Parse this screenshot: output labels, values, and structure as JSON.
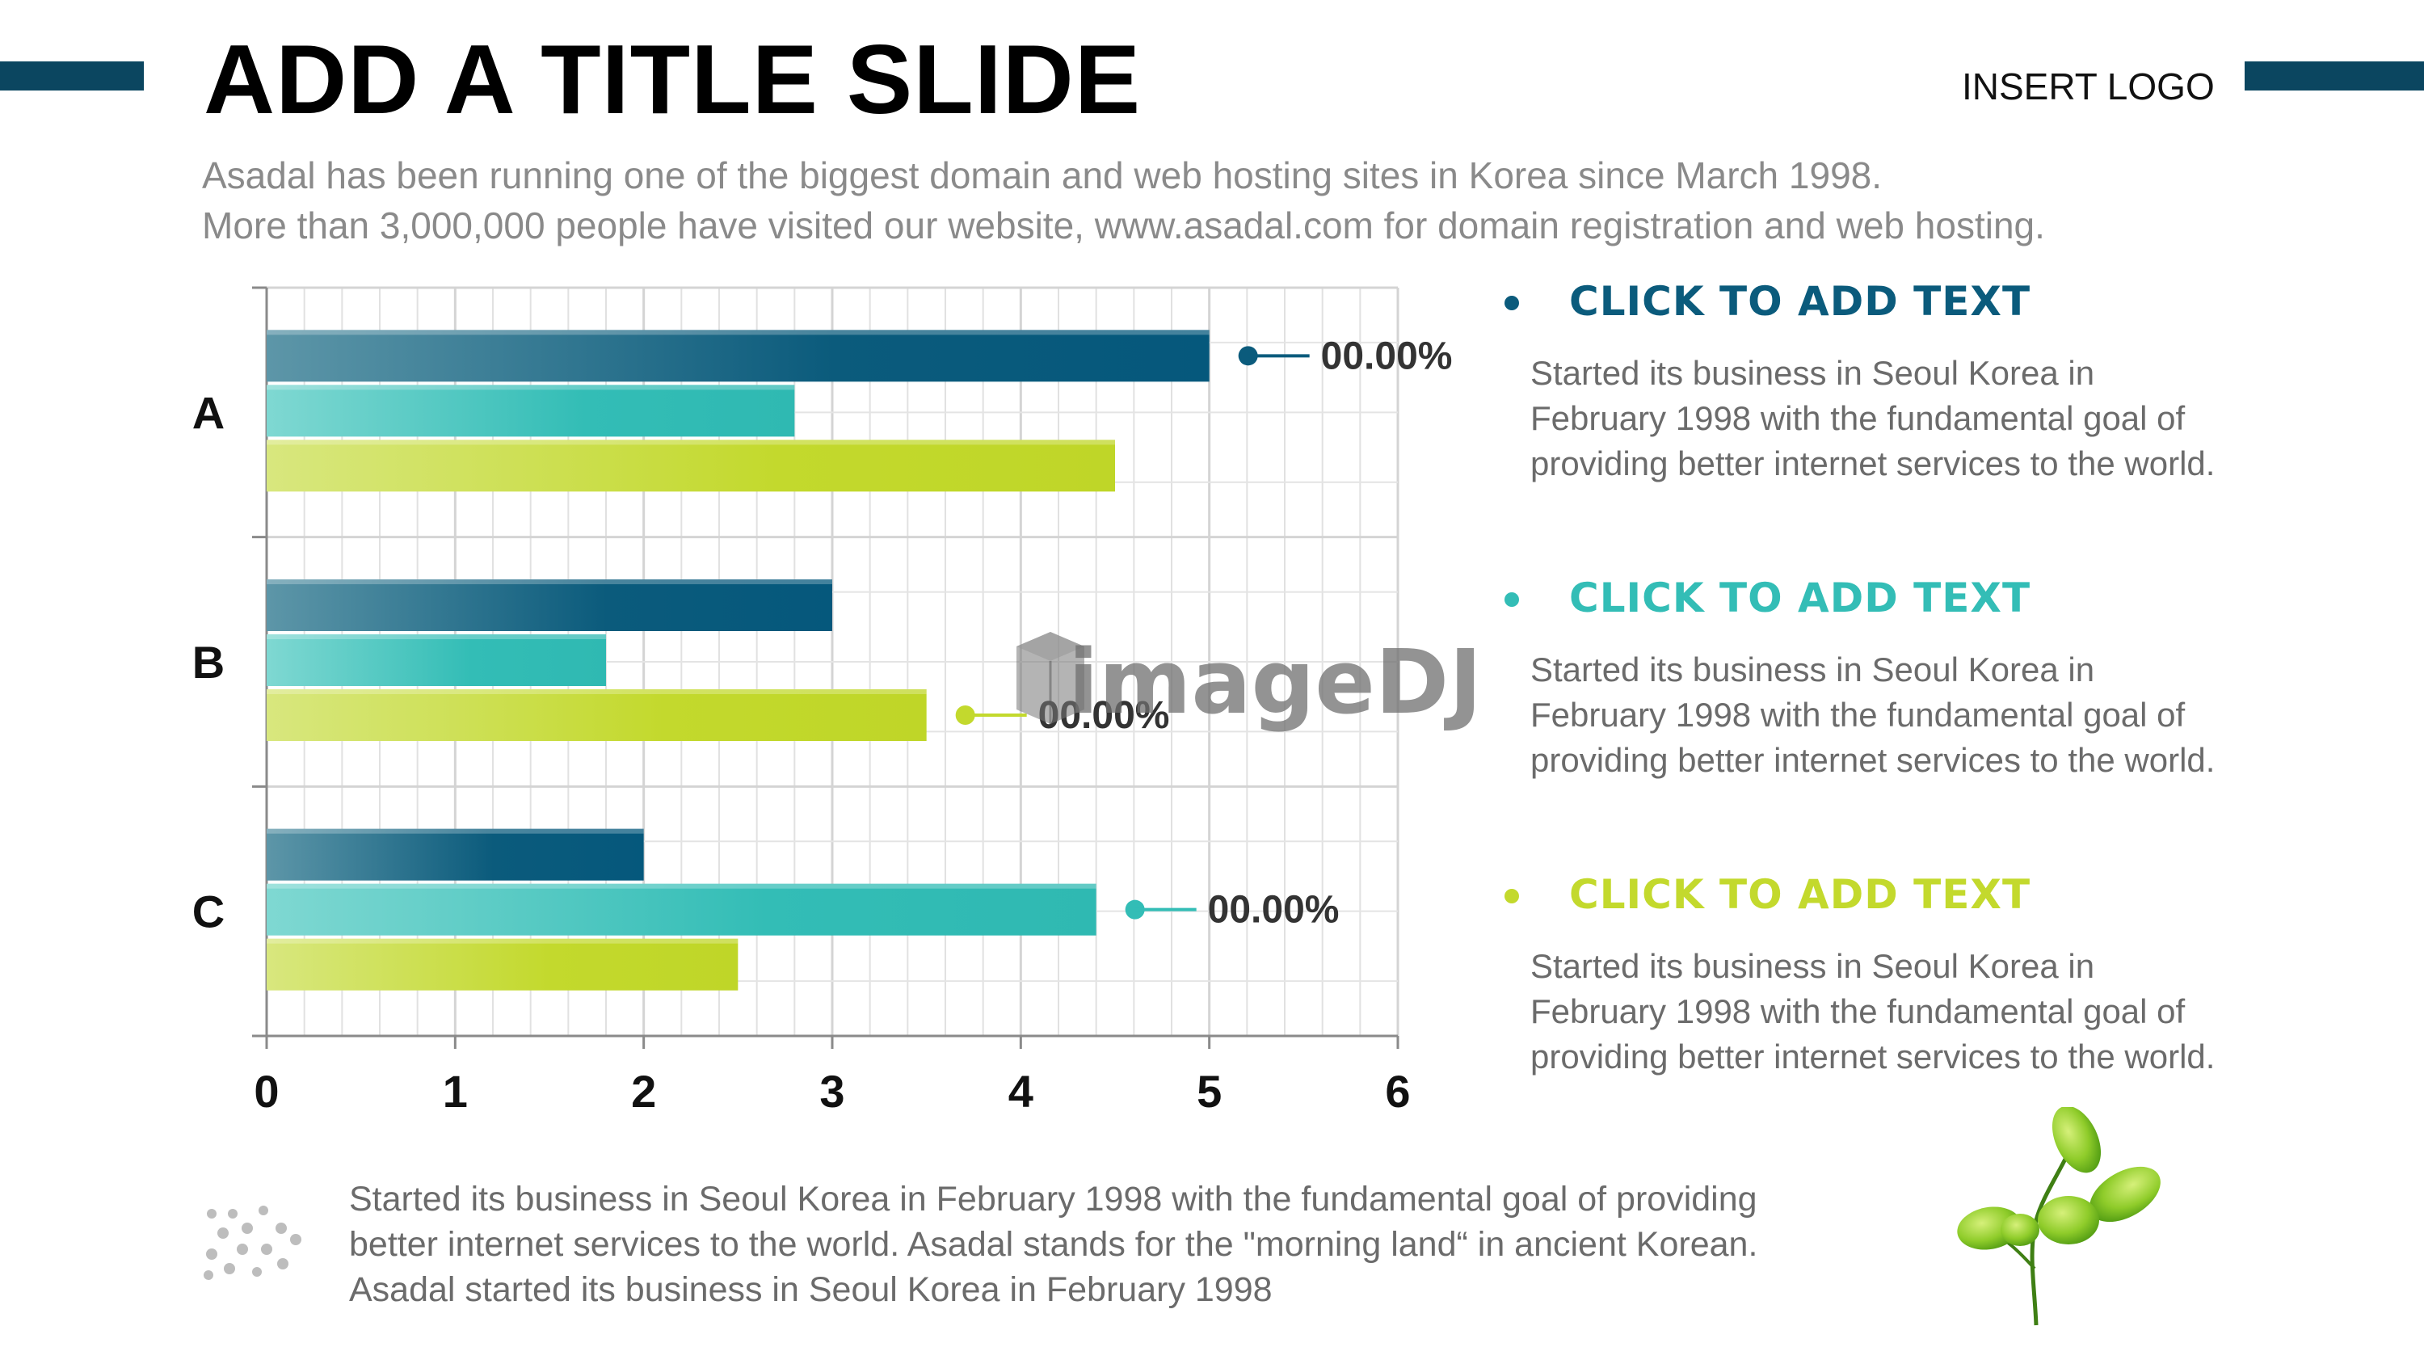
{
  "slide": {
    "title": "ADD A TITLE SLIDE",
    "logo": "INSERT LOGO",
    "subtitle_lines": [
      "Asadal has been running one of the biggest domain and web hosting sites in Korea since March 1998.",
      "More than 3,000,000 people have visited our website,  www.asadal.com for domain registration and web hosting."
    ]
  },
  "chart_data": {
    "type": "bar",
    "orientation": "horizontal",
    "categories": [
      "A",
      "B",
      "C"
    ],
    "series": [
      {
        "values": [
          5.0,
          3.0,
          2.0
        ],
        "color": "#0b5b7c"
      },
      {
        "values": [
          2.8,
          1.8,
          4.4
        ],
        "color": "#33bdb6"
      },
      {
        "values": [
          4.5,
          3.5,
          2.5
        ],
        "color": "#c3d92d"
      }
    ],
    "xlim": [
      0,
      6
    ],
    "xticks": [
      "0",
      "1",
      "2",
      "3",
      "4",
      "5",
      "6"
    ],
    "grid": true,
    "callouts": [
      {
        "category": "A",
        "series_index": 0,
        "label": "00.00%"
      },
      {
        "category": "B",
        "series_index": 2,
        "label": "00.00%"
      },
      {
        "category": "C",
        "series_index": 1,
        "label": "00.00%"
      }
    ]
  },
  "watermark": {
    "text": "imageDJ"
  },
  "sections": [
    {
      "heading": "CLICK TO ADD TEXT",
      "color": "#0b5b7c",
      "text": "Started its business in Seoul Korea  in February 1998 with the fundamental goal of providing better internet services to the world."
    },
    {
      "heading": "CLICK TO ADD TEXT",
      "color": "#33bdb6",
      "text": "Started its business in Seoul Korea  in February 1998 with the fundamental goal of providing better internet services to the world."
    },
    {
      "heading": "CLICK TO ADD TEXT",
      "color": "#c3d92d",
      "text": "Started its business in Seoul Korea  in February 1998 with the fundamental goal of providing better internet services to the world."
    }
  ],
  "footer": {
    "lines": [
      "Started its business in Seoul Korea  in February 1998 with the fundamental goal of providing",
      "better internet services to the world. Asadal stands for the \"morning land“ in ancient Korean.",
      "Asadal started its business in Seoul Korea  in February 1998"
    ]
  },
  "icons": {
    "decorative_dots": "dots-icon",
    "sprout": "sprout-icon"
  }
}
